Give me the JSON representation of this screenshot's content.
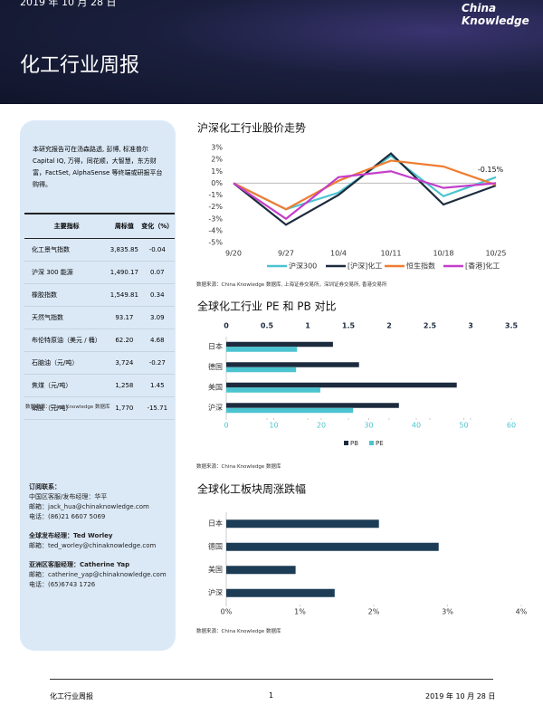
{
  "header": {
    "date": "2019 年 10 月 28 日",
    "title": "化工行业周报",
    "logo": "China Knowledge"
  },
  "sidebar": {
    "intro": "本研究报告可在汤森路透, 彭博, 标准普尔 Capital IQ, 万得，同花顺，大智慧，东方财富，FactSet, AlphaSense 等终端或研报平台购得。",
    "table": {
      "headers": [
        "主要指标",
        "周标值",
        "变化（%）"
      ],
      "rows": [
        [
          "化工景气指数",
          "3,835.85",
          "-0.04"
        ],
        [
          "沪深 300 能源",
          "1,490.17",
          "0.07"
        ],
        [
          "橡胶指数",
          "1,549.81",
          "0.34"
        ],
        [
          "天然气指数",
          "93.17",
          "3.09"
        ],
        [
          "布伦特原油（美元 / 桶）",
          "62.20",
          "4.68"
        ],
        [
          "石脑油（元/吨）",
          "3,724",
          "-0.27"
        ],
        [
          "焦煤（元/吨）",
          "1,258",
          "1.45"
        ],
        [
          "硝酸（元/吨）",
          "1,770",
          "-15.71"
        ]
      ]
    },
    "table_source": "数据来源：China Knowledge 数据库",
    "contacts": [
      [
        "订阅联系：",
        "中国区客服/发布经理：华平",
        "邮箱：jack_hua@chinaknowledge.com",
        "电话：(86)21 6607 5069"
      ],
      [
        "全球发布经理：Ted Worley",
        "邮箱：ted_worley@chinaknowledge.com"
      ],
      [
        "亚洲区客服经理：Catherine Yap",
        "邮箱：catherine_yap@chinaknowledge.com",
        "电话：(65)6743 1726"
      ]
    ]
  },
  "chart_sources": [
    "数据来源：China Knowledge 数据库, 上海证券交易所，深圳证券交易所, 香港交易所",
    "数据来源：China Knowledge 数据库",
    "数据来源：China Knowledge 数据库"
  ],
  "footer": {
    "left": "化工行业周报",
    "page": "1",
    "date": "2019 年 10 月 28 日"
  },
  "chart_data": [
    {
      "type": "line",
      "title": "沪深化工行业股价走势",
      "categories": [
        "9/20",
        "9/27",
        "10/4",
        "10/11",
        "10/18",
        "10/25"
      ],
      "series": [
        {
          "name": "沪深300",
          "color": "#4bc4d0",
          "values": [
            0,
            -2.2,
            -0.8,
            2.3,
            -1.1,
            0.5
          ]
        },
        {
          "name": "[沪深]化工",
          "color": "#1d2b3e",
          "values": [
            0,
            -3.5,
            -1.0,
            2.5,
            -1.8,
            -0.2
          ]
        },
        {
          "name": "恒生指数",
          "color": "#ee7d31",
          "values": [
            0,
            -2.2,
            0.2,
            1.9,
            1.4,
            -0.15
          ]
        },
        {
          "name": "[香港]化工",
          "color": "#c43ec9",
          "values": [
            0,
            -3.0,
            0.5,
            1.0,
            -0.4,
            0.0
          ]
        }
      ],
      "annotation": "-0.15%",
      "ylim": [
        -5,
        3
      ],
      "yticks": [
        {
          "value": 3,
          "label": "3%"
        },
        {
          "value": 2,
          "label": "2%"
        },
        {
          "value": 1,
          "label": "1%"
        },
        {
          "value": 0,
          "label": "0%"
        },
        {
          "value": -1,
          "label": "-1%"
        },
        {
          "value": -2,
          "label": "-2%"
        },
        {
          "value": -3,
          "label": "-3%"
        },
        {
          "value": -4,
          "label": "-4%"
        },
        {
          "value": -5,
          "label": "-5%"
        }
      ]
    },
    {
      "type": "hbar",
      "title": "全球化工行业 PE 和 PB 对比",
      "categories": [
        "日本",
        "德国",
        "美国",
        "沪深"
      ],
      "series": [
        {
          "name": "PB",
          "color": "#1d2b3e",
          "axis": "x2",
          "values": [
            1.31,
            1.63,
            2.83,
            2.12
          ]
        },
        {
          "name": "PE",
          "color": "#4bc4d0",
          "values": [
            14.9,
            14.7,
            19.8,
            26.7
          ]
        }
      ],
      "xlim": [
        0,
        60
      ],
      "xticks": [
        0,
        10,
        20,
        30,
        40,
        50,
        60
      ],
      "x2lim": [
        0,
        3.5
      ],
      "x2ticks": [
        0,
        0.5,
        1,
        1.5,
        2,
        2.5,
        3,
        3.5
      ]
    },
    {
      "type": "hbar",
      "title": "全球化工板块周涨跌幅",
      "categories": [
        "日本",
        "德国",
        "美国",
        "沪深"
      ],
      "series": [
        {
          "name": "周涨跌幅",
          "color": "#1d3d56",
          "values": [
            2.07,
            2.88,
            0.94,
            1.47
          ]
        }
      ],
      "xlim": [
        0,
        4
      ],
      "xticks": [
        {
          "value": 0,
          "label": "0%"
        },
        {
          "value": 1,
          "label": "1%"
        },
        {
          "value": 2,
          "label": "2%"
        },
        {
          "value": 3,
          "label": "3%"
        },
        {
          "value": 4,
          "label": "4%"
        }
      ]
    }
  ]
}
